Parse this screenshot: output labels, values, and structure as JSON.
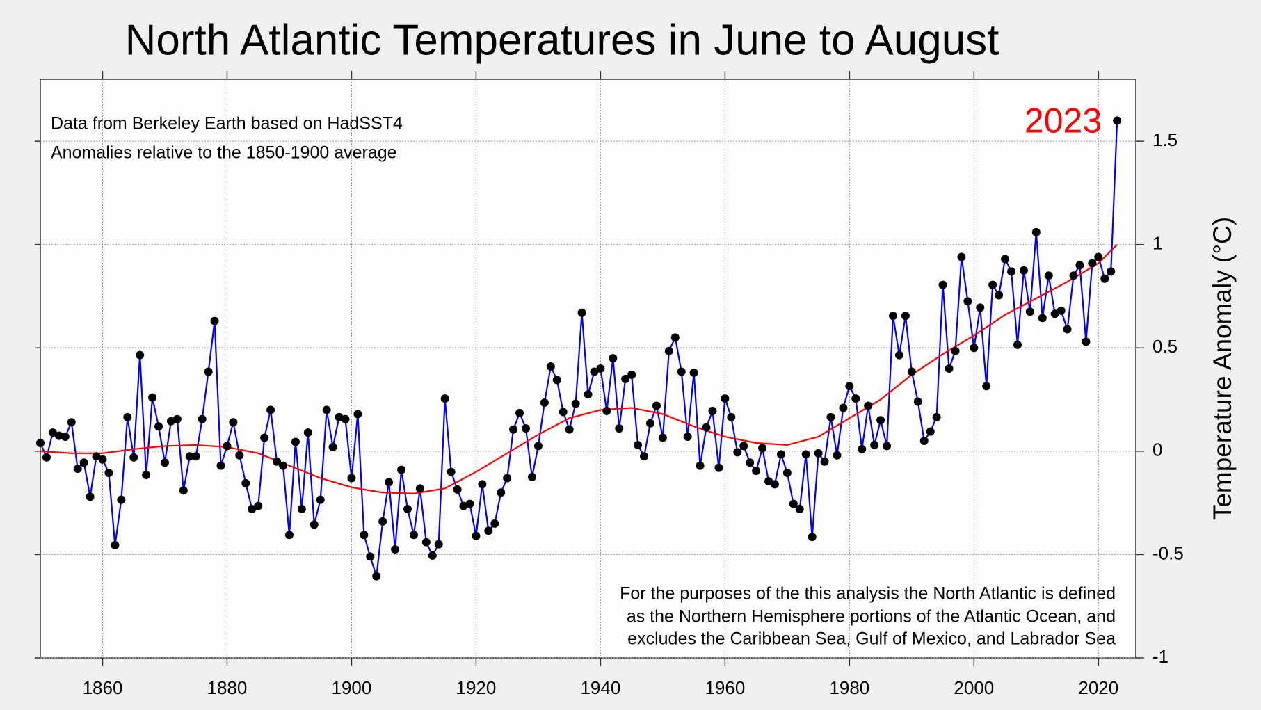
{
  "chart_data": {
    "type": "line",
    "title": "North Atlantic Temperatures in June to August",
    "y_label": "Temperature Anomaly (°C)",
    "notes_top": [
      "Data from Berkeley Earth based on HadSST4",
      "Anomalies relative to the 1850-1900 average"
    ],
    "notes_bottom": [
      "For the purposes of the this analysis the North Atlantic is defined",
      "as the Northern Hemisphere portions of the Atlantic Ocean, and",
      "excludes the Caribbean Sea, Gulf of Mexico, and Labrador Sea"
    ],
    "highlight_label": "2023",
    "highlight_color": "#ff0000",
    "xlim": [
      1850,
      2026
    ],
    "xticks": [
      1860,
      1880,
      1900,
      1920,
      1940,
      1960,
      1980,
      2000,
      2020
    ],
    "ylim": [
      -1,
      1.8
    ],
    "yticks": [
      -1,
      -0.5,
      0,
      0.5,
      1,
      1.5
    ],
    "grid": true,
    "x": [
      1850,
      1851,
      1852,
      1853,
      1854,
      1855,
      1856,
      1857,
      1858,
      1859,
      1860,
      1861,
      1862,
      1863,
      1864,
      1865,
      1866,
      1867,
      1868,
      1869,
      1870,
      1871,
      1872,
      1873,
      1874,
      1875,
      1876,
      1877,
      1878,
      1879,
      1880,
      1881,
      1882,
      1883,
      1884,
      1885,
      1886,
      1887,
      1888,
      1889,
      1890,
      1891,
      1892,
      1893,
      1894,
      1895,
      1896,
      1897,
      1898,
      1899,
      1900,
      1901,
      1902,
      1903,
      1904,
      1905,
      1906,
      1907,
      1908,
      1909,
      1910,
      1911,
      1912,
      1913,
      1914,
      1915,
      1916,
      1917,
      1918,
      1919,
      1920,
      1921,
      1922,
      1923,
      1924,
      1925,
      1926,
      1927,
      1928,
      1929,
      1930,
      1931,
      1932,
      1933,
      1934,
      1935,
      1936,
      1937,
      1938,
      1939,
      1940,
      1941,
      1942,
      1943,
      1944,
      1945,
      1946,
      1947,
      1948,
      1949,
      1950,
      1951,
      1952,
      1953,
      1954,
      1955,
      1956,
      1957,
      1958,
      1959,
      1960,
      1961,
      1962,
      1963,
      1964,
      1965,
      1966,
      1967,
      1968,
      1969,
      1970,
      1971,
      1972,
      1973,
      1974,
      1975,
      1976,
      1977,
      1978,
      1979,
      1980,
      1981,
      1982,
      1983,
      1984,
      1985,
      1986,
      1987,
      1988,
      1989,
      1990,
      1991,
      1992,
      1993,
      1994,
      1995,
      1996,
      1997,
      1998,
      1999,
      2000,
      2001,
      2002,
      2003,
      2004,
      2005,
      2006,
      2007,
      2008,
      2009,
      2010,
      2011,
      2012,
      2013,
      2014,
      2015,
      2016,
      2017,
      2018,
      2019,
      2020,
      2021,
      2022,
      2023
    ],
    "series": [
      {
        "color": "#0000ff",
        "values": [
          0.04,
          -0.03,
          0.09,
          0.075,
          0.07,
          0.14,
          -0.085,
          -0.055,
          -0.22,
          -0.025,
          -0.04,
          -0.105,
          -0.455,
          -0.235,
          0.165,
          -0.03,
          0.465,
          -0.115,
          0.26,
          0.12,
          -0.055,
          0.145,
          0.155,
          -0.19,
          -0.025,
          -0.025,
          0.155,
          0.385,
          0.63,
          -0.07,
          0.025,
          0.14,
          -0.02,
          -0.155,
          -0.28,
          -0.265,
          0.065,
          0.2,
          -0.05,
          -0.07,
          -0.405,
          0.045,
          -0.28,
          0.09,
          -0.355,
          -0.235,
          0.2,
          0.02,
          0.165,
          0.155,
          -0.13,
          0.18,
          -0.405,
          -0.51,
          -0.605,
          -0.34,
          -0.15,
          -0.475,
          -0.09,
          -0.28,
          -0.405,
          -0.18,
          -0.44,
          -0.505,
          -0.45,
          0.255,
          -0.1,
          -0.185,
          -0.265,
          -0.255,
          -0.41,
          -0.16,
          -0.385,
          -0.35,
          -0.2,
          -0.13,
          0.105,
          0.185,
          0.11,
          -0.125,
          0.025,
          0.235,
          0.41,
          0.345,
          0.19,
          0.105,
          0.23,
          0.67,
          0.275,
          0.385,
          0.4,
          0.195,
          0.45,
          0.11,
          0.35,
          0.37,
          0.03,
          -0.025,
          0.135,
          0.22,
          0.065,
          0.485,
          0.55,
          0.385,
          0.07,
          0.38,
          -0.07,
          0.115,
          0.195,
          -0.08,
          0.255,
          0.165,
          -0.005,
          0.025,
          -0.055,
          -0.095,
          0.015,
          -0.145,
          -0.16,
          -0.015,
          -0.105,
          -0.255,
          -0.28,
          -0.015,
          -0.415,
          -0.01,
          -0.05,
          0.165,
          -0.02,
          0.21,
          0.315,
          0.255,
          0.01,
          0.22,
          0.03,
          0.15,
          0.025,
          0.655,
          0.465,
          0.655,
          0.385,
          0.24,
          0.05,
          0.095,
          0.165,
          0.805,
          0.4,
          0.485,
          0.94,
          0.725,
          0.5,
          0.695,
          0.315,
          0.805,
          0.755,
          0.93,
          0.87,
          0.515,
          0.875,
          0.675,
          1.06,
          0.645,
          0.85,
          0.665,
          0.68,
          0.59,
          0.85,
          0.9,
          0.53,
          0.91,
          0.94,
          0.835,
          0.87,
          1.6
        ]
      }
    ],
    "trend": {
      "color": "#ff0000",
      "x": [
        1850,
        1855,
        1860,
        1865,
        1870,
        1875,
        1880,
        1885,
        1890,
        1895,
        1900,
        1905,
        1910,
        1915,
        1920,
        1925,
        1930,
        1935,
        1940,
        1945,
        1950,
        1955,
        1960,
        1965,
        1970,
        1975,
        1980,
        1985,
        1990,
        1995,
        2000,
        2005,
        2010,
        2015,
        2020,
        2023
      ],
      "values": [
        0,
        -0.01,
        -0.01,
        0.01,
        0.025,
        0.03,
        0.02,
        -0.01,
        -0.07,
        -0.13,
        -0.175,
        -0.2,
        -0.205,
        -0.18,
        -0.1,
        -0.01,
        0.08,
        0.16,
        0.2,
        0.21,
        0.18,
        0.12,
        0.07,
        0.04,
        0.03,
        0.07,
        0.16,
        0.25,
        0.37,
        0.47,
        0.56,
        0.66,
        0.74,
        0.82,
        0.91,
        1.0
      ]
    }
  }
}
